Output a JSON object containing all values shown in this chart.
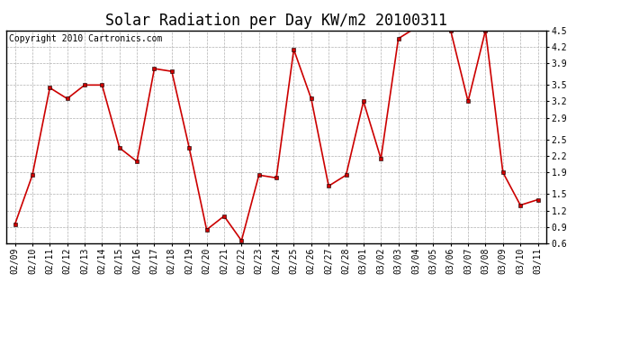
{
  "title": "Solar Radiation per Day KW/m2 20100311",
  "copyright_text": "Copyright 2010 Cartronics.com",
  "dates": [
    "02/09",
    "02/10",
    "02/11",
    "02/12",
    "02/13",
    "02/14",
    "02/15",
    "02/16",
    "02/17",
    "02/18",
    "02/19",
    "02/20",
    "02/21",
    "02/22",
    "02/23",
    "02/24",
    "02/25",
    "02/26",
    "02/27",
    "02/28",
    "03/01",
    "03/02",
    "03/03",
    "03/04",
    "03/05",
    "03/06",
    "03/07",
    "03/08",
    "03/09",
    "03/10",
    "03/11"
  ],
  "values": [
    0.95,
    1.85,
    3.45,
    3.25,
    3.5,
    3.5,
    2.35,
    2.1,
    3.8,
    3.75,
    2.35,
    0.85,
    1.1,
    0.65,
    1.85,
    1.8,
    4.15,
    3.25,
    1.65,
    1.85,
    3.2,
    2.15,
    4.35,
    4.55,
    4.55,
    4.5,
    3.2,
    4.5,
    1.9,
    1.3,
    1.4
  ],
  "line_color": "#cc0000",
  "marker_color": "#000000",
  "bg_color": "#ffffff",
  "grid_color": "#b0b0b0",
  "ylim_min": 0.6,
  "ylim_max": 4.5,
  "yticks": [
    0.6,
    0.9,
    1.2,
    1.5,
    1.9,
    2.2,
    2.5,
    2.9,
    3.2,
    3.5,
    3.9,
    4.2,
    4.5
  ],
  "title_fontsize": 12,
  "copyright_fontsize": 7,
  "tick_fontsize": 7
}
